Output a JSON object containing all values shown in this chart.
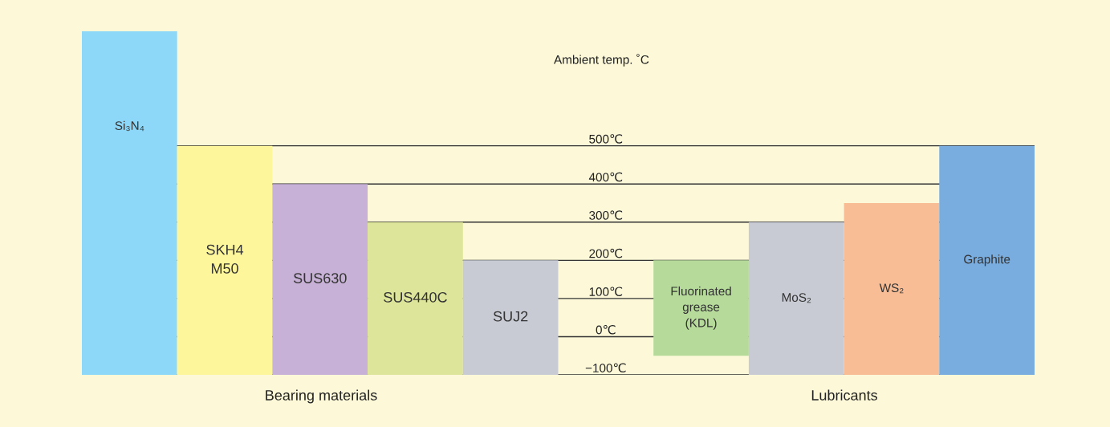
{
  "chart_data": {
    "type": "bar",
    "categories": [
      "Si₃N₄",
      "SKH4\nM50",
      "SUS630",
      "SUS440C",
      "SUJ2",
      null,
      "Fluorinated\ngrease\n(KDL)",
      "MoS₂",
      "WS₂",
      "Graphite"
    ],
    "base": [
      -100,
      -100,
      -100,
      -100,
      -100,
      null,
      -50,
      -100,
      -100,
      -100
    ],
    "values": [
      900,
      600,
      500,
      400,
      300,
      null,
      250,
      400,
      450,
      600
    ],
    "colors": [
      "#8dd8f8",
      "#fef69a",
      "#c8b1d6",
      "#dde59a",
      "#c9cbd4",
      null,
      "#b5da9a",
      "#c9cbd4",
      "#f8bd95",
      "#79acdf"
    ],
    "ylim": [
      -100,
      800
    ],
    "tick_labels": false,
    "ref_lines": [
      {
        "axis": "y",
        "value": 500,
        "label": "500℃",
        "color": "#333333"
      },
      {
        "axis": "y",
        "value": 400,
        "label": "400℃",
        "color": "#333333"
      },
      {
        "axis": "y",
        "value": 300,
        "label": "300℃",
        "color": "#333333"
      },
      {
        "axis": "y",
        "value": 200,
        "label": "200℃",
        "color": "#333333"
      },
      {
        "axis": "y",
        "value": 100,
        "label": "100℃",
        "color": "#333333"
      },
      {
        "axis": "y",
        "value": 0,
        "label": "0℃",
        "color": "#333333"
      },
      {
        "axis": "y",
        "value": -100,
        "label": "−100℃",
        "color": "#333333"
      }
    ],
    "annotations": [
      "Ambient temp. ˚C",
      "Bearing materials",
      "Lubricants"
    ]
  }
}
